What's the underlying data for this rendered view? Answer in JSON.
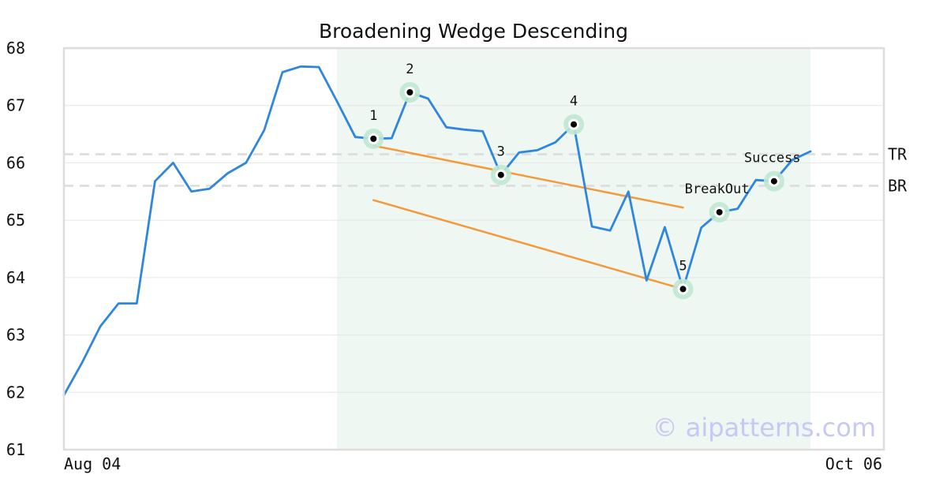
{
  "chart_data": {
    "type": "line",
    "title": "Broadening Wedge Descending",
    "x_tick_labels": [
      "Aug 04",
      "Oct 06"
    ],
    "xlim": [
      0,
      41
    ],
    "ylim": [
      61,
      68
    ],
    "y_ticks": [
      61,
      62,
      63,
      64,
      65,
      66,
      67,
      68
    ],
    "grid": true,
    "series": [
      {
        "color": "#2f86de",
        "x": [
          0,
          1,
          2,
          3,
          4,
          5,
          6,
          7,
          8,
          9,
          10,
          11,
          12,
          13,
          14,
          15,
          16,
          17,
          18,
          19,
          20,
          21,
          22,
          23,
          24,
          25,
          26,
          27,
          28,
          29,
          30,
          31,
          32,
          33,
          34,
          35,
          36,
          37,
          38,
          39,
          40,
          41
        ],
        "values": [
          61.95,
          62.52,
          63.15,
          63.55,
          63.55,
          65.68,
          66.0,
          65.5,
          65.55,
          65.82,
          66.0,
          66.57,
          67.58,
          67.68,
          67.67,
          67.07,
          66.45,
          66.42,
          66.43,
          67.23,
          67.12,
          66.62,
          66.58,
          66.55,
          65.79,
          66.18,
          66.22,
          66.36,
          66.67,
          64.89,
          64.82,
          65.5,
          63.95,
          64.88,
          63.8,
          64.87,
          65.14,
          65.2,
          65.7,
          65.68,
          66.05,
          66.2
        ]
      }
    ],
    "highlight_region": {
      "x_start": 15,
      "x_end": 41,
      "color": "#eef7f2"
    },
    "reference_lines": [
      {
        "label": "TR",
        "y": 66.15
      },
      {
        "label": "BR",
        "y": 65.6
      }
    ],
    "trend_lines": [
      {
        "x": [
          17,
          34
        ],
        "y": [
          66.3,
          65.22
        ],
        "color": "#f39a3c"
      },
      {
        "x": [
          17,
          34
        ],
        "y": [
          65.35,
          63.8
        ],
        "color": "#f39a3c"
      }
    ],
    "annotated_points": [
      {
        "label": "1",
        "x": 17,
        "y": 66.42
      },
      {
        "label": "2",
        "x": 19,
        "y": 67.23
      },
      {
        "label": "3",
        "x": 24,
        "y": 65.79
      },
      {
        "label": "4",
        "x": 28,
        "y": 66.67
      },
      {
        "label": "5",
        "x": 34,
        "y": 63.8
      },
      {
        "label": "BreakOut",
        "x": 36,
        "y": 65.14
      },
      {
        "label": "Success",
        "x": 39,
        "y": 65.68
      }
    ],
    "watermark": "© aipatterns.com"
  }
}
